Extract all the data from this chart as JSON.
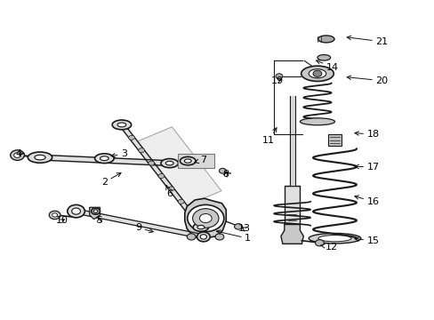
{
  "background_color": "#ffffff",
  "line_color": "#1a1a1a",
  "fig_width": 4.89,
  "fig_height": 3.6,
  "dpi": 100,
  "label_positions": {
    "1": [
      0.57,
      0.255,
      0.49,
      0.28
    ],
    "2": [
      0.24,
      0.43,
      0.285,
      0.465
    ],
    "3": [
      0.285,
      0.52,
      0.248,
      0.51
    ],
    "4": [
      0.042,
      0.52,
      0.055,
      0.52
    ],
    "5": [
      0.228,
      0.31,
      0.228,
      0.33
    ],
    "6": [
      0.39,
      0.395,
      0.38,
      0.43
    ],
    "7": [
      0.468,
      0.5,
      0.44,
      0.49
    ],
    "8": [
      0.52,
      0.455,
      0.524,
      0.463
    ],
    "9": [
      0.318,
      0.288,
      0.36,
      0.273
    ],
    "10": [
      0.142,
      0.31,
      0.155,
      0.32
    ],
    "11": [
      0.618,
      0.56,
      0.64,
      0.61
    ],
    "12": [
      0.762,
      0.228,
      0.73,
      0.235
    ],
    "13": [
      0.562,
      0.285,
      0.55,
      0.295
    ],
    "14": [
      0.765,
      0.79,
      0.72,
      0.815
    ],
    "15": [
      0.858,
      0.248,
      0.808,
      0.255
    ],
    "16": [
      0.858,
      0.37,
      0.808,
      0.39
    ],
    "17": [
      0.858,
      0.478,
      0.808,
      0.48
    ],
    "18": [
      0.858,
      0.58,
      0.808,
      0.585
    ],
    "19": [
      0.638,
      0.748,
      0.655,
      0.755
    ],
    "20": [
      0.878,
      0.748,
      0.79,
      0.76
    ],
    "21": [
      0.878,
      0.87,
      0.79,
      0.885
    ]
  }
}
